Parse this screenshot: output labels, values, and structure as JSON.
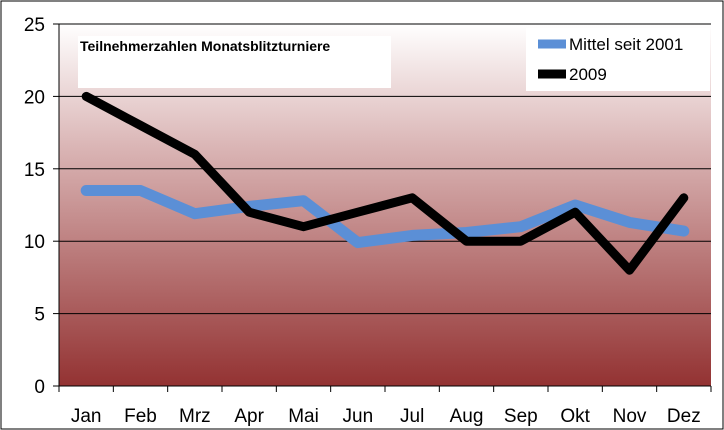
{
  "chart_data": {
    "type": "line",
    "title": "Teilnehmerzahlen Monatsblitzturniere",
    "xlabel": "",
    "ylabel": "",
    "ylim": [
      0,
      25
    ],
    "yticks": [
      "0",
      "5",
      "10",
      "15",
      "20",
      "25"
    ],
    "categories": [
      "Jan",
      "Feb",
      "Mrz",
      "Apr",
      "Mai",
      "Jun",
      "Jul",
      "Aug",
      "Sep",
      "Okt",
      "Nov",
      "Dez"
    ],
    "grid": true,
    "legend_position": "top-right",
    "series": [
      {
        "name": "Mittel seit 2001",
        "color": "#5b8fd6",
        "values": [
          13.5,
          13.5,
          11.9,
          12.4,
          12.8,
          9.9,
          10.4,
          10.6,
          11.0,
          12.5,
          11.3,
          10.7
        ]
      },
      {
        "name": "2009",
        "color": "#000000",
        "values": [
          20,
          18,
          16,
          12,
          11,
          12,
          13,
          10,
          10,
          12,
          8,
          13
        ]
      }
    ]
  }
}
